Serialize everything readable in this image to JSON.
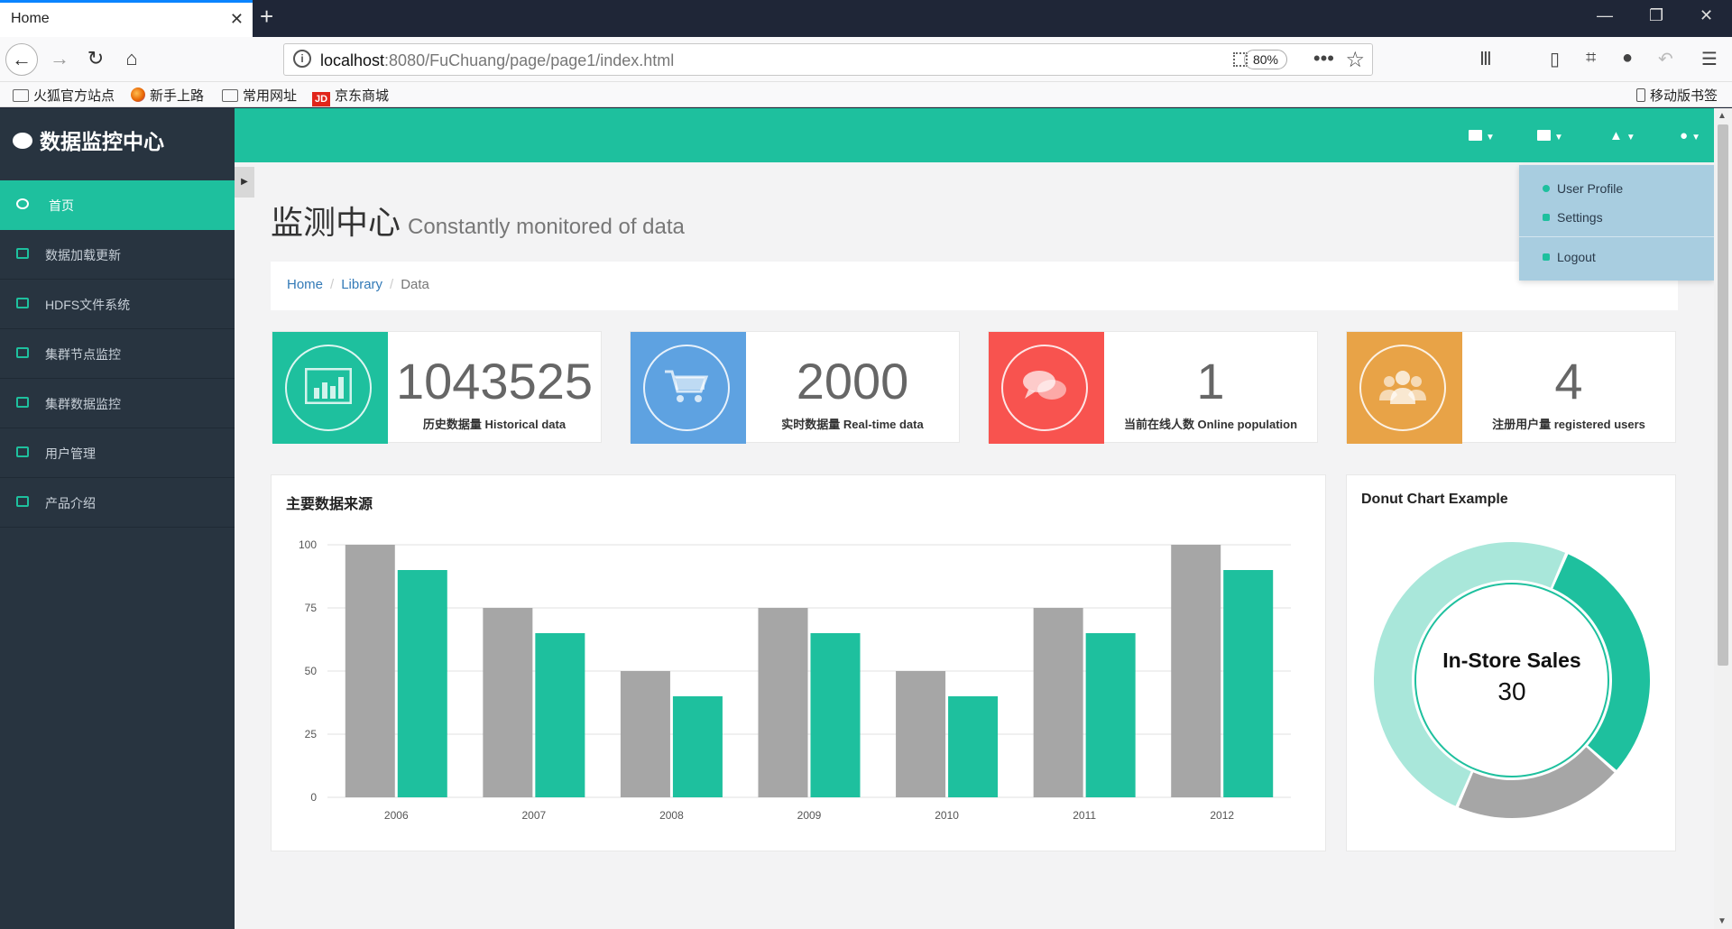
{
  "browser": {
    "tab_title": "Home",
    "new_tab": "+",
    "url_host": "localhost",
    "url_rest": ":8080/FuChuang/page/page1/index.html",
    "zoom": "80%",
    "bookmarks": [
      "火狐官方站点",
      "新手上路",
      "常用网址",
      "京东商城"
    ],
    "mobile_bookmarks": "移动版书签"
  },
  "app": {
    "brand": "数据监控中心",
    "menu": [
      {
        "label": "首页",
        "icon": "dashboard-icon",
        "active": true
      },
      {
        "label": "数据加载更新",
        "icon": "desktop-icon"
      },
      {
        "label": "HDFS文件系统",
        "icon": "bar-chart-icon"
      },
      {
        "label": "集群节点监控",
        "icon": "bar-chart-icon"
      },
      {
        "label": "集群数据监控",
        "icon": "file-icon"
      },
      {
        "label": "用户管理",
        "icon": "table-icon"
      },
      {
        "label": "产品介绍",
        "icon": "qrcode-icon"
      }
    ],
    "page_title": "监测中心",
    "page_subtitle": "Constantly monitored of data",
    "breadcrumb": [
      "Home",
      "Library",
      "Data"
    ],
    "stats": [
      {
        "value": "1043525",
        "label": "历史数据量 Historical data",
        "color": "#1ec09e",
        "icon": "bar-chart-icon"
      },
      {
        "value": "2000",
        "label": "实时数据量 Real-time data",
        "color": "#5ea2e1",
        "icon": "cart-icon"
      },
      {
        "value": "1",
        "label": "当前在线人数 Online population",
        "color": "#f8534f",
        "icon": "comments-icon"
      },
      {
        "value": "4",
        "label": "注册用户量 registered users",
        "color": "#e8a347",
        "icon": "users-icon"
      }
    ],
    "dropdown": {
      "items": [
        "User Profile",
        "Settings",
        "Logout"
      ]
    }
  },
  "chart_data": [
    {
      "type": "bar",
      "title": "主要数据来源",
      "categories": [
        "2006",
        "2007",
        "2008",
        "2009",
        "2010",
        "2011",
        "2012"
      ],
      "series": [
        {
          "values": [
            100,
            75,
            50,
            75,
            50,
            75,
            100
          ],
          "color": "#a6a6a6"
        },
        {
          "values": [
            90,
            65,
            40,
            65,
            40,
            65,
            90
          ],
          "color": "#1ec09e"
        }
      ],
      "ylim": [
        0,
        100
      ],
      "yticks": [
        0,
        25,
        50,
        75,
        100
      ],
      "grid": true
    },
    {
      "type": "pie",
      "title": "Donut Chart Example",
      "center_label": "In-Store Sales",
      "center_value": "30",
      "slices": [
        {
          "label": "In-Store Sales",
          "value": 30,
          "color": "#1ec09e"
        },
        {
          "value": 20,
          "color": "#a6a6a6"
        },
        {
          "value": 50,
          "color": "#a9e7da"
        }
      ]
    }
  ]
}
